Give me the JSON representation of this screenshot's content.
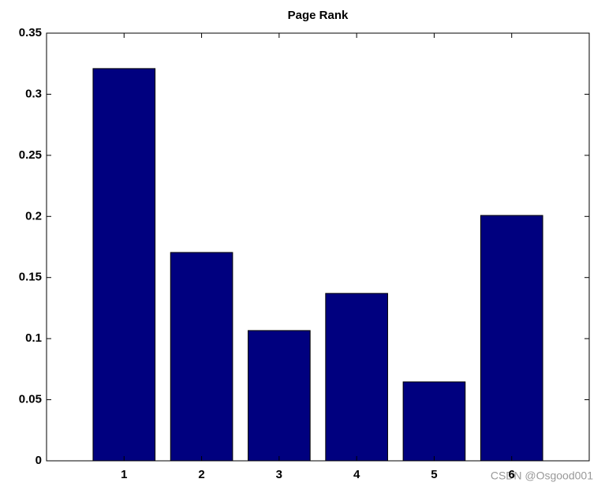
{
  "chart_data": {
    "type": "bar",
    "title": "Page Rank",
    "x": [
      1,
      2,
      3,
      4,
      5,
      6
    ],
    "values": [
      0.321,
      0.1705,
      0.1066,
      0.137,
      0.0646,
      0.2008
    ],
    "color": "#00007f",
    "xlim": [
      0,
      7
    ],
    "xticks": [
      1,
      2,
      3,
      4,
      5,
      6
    ],
    "ylim": [
      0,
      0.35
    ],
    "yticks": [
      0,
      0.05,
      0.1,
      0.15,
      0.2,
      0.25,
      0.3,
      0.35
    ],
    "grid": false
  },
  "watermark": "CSDN @Osgood001"
}
